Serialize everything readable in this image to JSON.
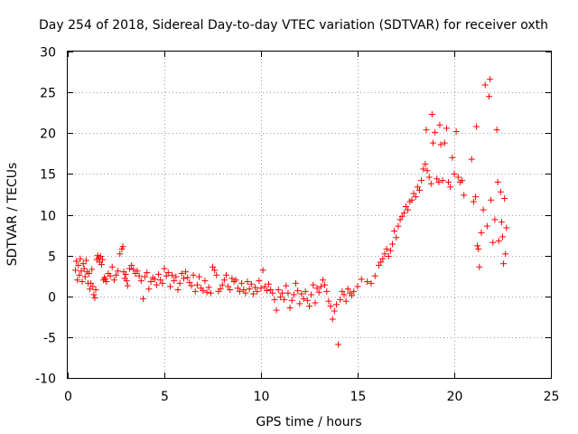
{
  "chart_data": {
    "type": "scatter",
    "title": "Day 254 of 2018, Sidereal Day-to-day VTEC variation (SDTVAR) for receiver oxth",
    "xlabel": "GPS time / hours",
    "ylabel": "SDTVAR / TECUs",
    "xlim": [
      0,
      25
    ],
    "ylim": [
      -10,
      30
    ],
    "xticks": [
      0,
      5,
      10,
      15,
      20,
      25
    ],
    "yticks": [
      -10,
      -5,
      0,
      5,
      10,
      15,
      20,
      25,
      30
    ],
    "xtick_labels": [
      "0",
      "5",
      "10",
      "15",
      "20",
      "25"
    ],
    "ytick_labels": [
      "-10",
      "-5",
      "0",
      "5",
      "10",
      "15",
      "20",
      "25",
      "30"
    ],
    "grid": true,
    "marker": "plus",
    "color": "#ff0000",
    "series": [
      {
        "name": "SDTVAR",
        "points": [
          [
            0.4,
            3.2
          ],
          [
            0.45,
            4.3
          ],
          [
            0.5,
            2.0
          ],
          [
            0.55,
            3.8
          ],
          [
            0.6,
            2.6
          ],
          [
            0.65,
            4.6
          ],
          [
            0.7,
            3.1
          ],
          [
            0.75,
            1.8
          ],
          [
            0.8,
            4.0
          ],
          [
            0.85,
            3.4
          ],
          [
            0.9,
            2.4
          ],
          [
            0.95,
            4.4
          ],
          [
            1.0,
            3.0
          ],
          [
            1.05,
            1.6
          ],
          [
            1.1,
            2.8
          ],
          [
            1.15,
            0.9
          ],
          [
            1.2,
            1.6
          ],
          [
            1.25,
            3.3
          ],
          [
            1.3,
            1.2
          ],
          [
            1.35,
            0.2
          ],
          [
            1.4,
            -0.2
          ],
          [
            1.45,
            0.8
          ],
          [
            1.5,
            4.5
          ],
          [
            1.55,
            5.0
          ],
          [
            1.6,
            4.7
          ],
          [
            1.65,
            4.2
          ],
          [
            1.7,
            4.9
          ],
          [
            1.75,
            3.9
          ],
          [
            1.8,
            4.5
          ],
          [
            1.85,
            2.0
          ],
          [
            1.9,
            2.3
          ],
          [
            1.95,
            2.1
          ],
          [
            2.0,
            1.8
          ],
          [
            2.1,
            2.8
          ],
          [
            2.2,
            2.5
          ],
          [
            2.3,
            3.6
          ],
          [
            2.4,
            2.0
          ],
          [
            2.5,
            2.6
          ],
          [
            2.6,
            3.1
          ],
          [
            2.7,
            5.2
          ],
          [
            2.8,
            5.8
          ],
          [
            2.85,
            6.1
          ],
          [
            2.9,
            3.0
          ],
          [
            2.95,
            2.2
          ],
          [
            3.0,
            2.7
          ],
          [
            3.05,
            1.9
          ],
          [
            3.1,
            1.3
          ],
          [
            3.2,
            3.4
          ],
          [
            3.3,
            3.8
          ],
          [
            3.4,
            3.3
          ],
          [
            3.5,
            2.8
          ],
          [
            3.6,
            3.1
          ],
          [
            3.7,
            2.5
          ],
          [
            3.8,
            1.9
          ],
          [
            3.9,
            -0.3
          ],
          [
            4.0,
            2.4
          ],
          [
            4.1,
            2.9
          ],
          [
            4.2,
            0.9
          ],
          [
            4.3,
            1.8
          ],
          [
            4.4,
            2.3
          ],
          [
            4.5,
            2.1
          ],
          [
            4.6,
            1.4
          ],
          [
            4.7,
            2.7
          ],
          [
            4.8,
            2.0
          ],
          [
            4.9,
            1.6
          ],
          [
            5.0,
            3.4
          ],
          [
            5.1,
            2.5
          ],
          [
            5.2,
            2.9
          ],
          [
            5.3,
            1.2
          ],
          [
            5.4,
            2.6
          ],
          [
            5.5,
            1.9
          ],
          [
            5.6,
            2.4
          ],
          [
            5.7,
            0.8
          ],
          [
            5.8,
            1.6
          ],
          [
            5.9,
            2.8
          ],
          [
            6.0,
            2.2
          ],
          [
            6.1,
            3.0
          ],
          [
            6.2,
            2.3
          ],
          [
            6.3,
            1.7
          ],
          [
            6.4,
            1.3
          ],
          [
            6.5,
            2.6
          ],
          [
            6.6,
            0.6
          ],
          [
            6.7,
            1.4
          ],
          [
            6.8,
            2.4
          ],
          [
            6.9,
            1.0
          ],
          [
            7.0,
            0.7
          ],
          [
            7.1,
            1.9
          ],
          [
            7.2,
            0.5
          ],
          [
            7.3,
            1.1
          ],
          [
            7.4,
            0.4
          ],
          [
            7.5,
            3.6
          ],
          [
            7.6,
            3.2
          ],
          [
            7.7,
            2.6
          ],
          [
            7.8,
            0.6
          ],
          [
            7.9,
            0.9
          ],
          [
            8.0,
            1.4
          ],
          [
            8.1,
            2.0
          ],
          [
            8.2,
            2.6
          ],
          [
            8.3,
            1.2
          ],
          [
            8.4,
            0.8
          ],
          [
            8.5,
            2.2
          ],
          [
            8.6,
            1.8
          ],
          [
            8.7,
            2.0
          ],
          [
            8.8,
            1.0
          ],
          [
            8.9,
            0.6
          ],
          [
            9.0,
            1.6
          ],
          [
            9.1,
            0.8
          ],
          [
            9.2,
            0.4
          ],
          [
            9.3,
            1.8
          ],
          [
            9.4,
            0.9
          ],
          [
            9.5,
            1.5
          ],
          [
            9.6,
            0.3
          ],
          [
            9.7,
            1.1
          ],
          [
            9.8,
            0.6
          ],
          [
            9.9,
            1.9
          ],
          [
            10.0,
            1.0
          ],
          [
            10.1,
            3.2
          ],
          [
            10.2,
            1.2
          ],
          [
            10.3,
            0.7
          ],
          [
            10.4,
            1.5
          ],
          [
            10.5,
            0.8
          ],
          [
            10.6,
            0.4
          ],
          [
            10.7,
            -0.4
          ],
          [
            10.8,
            -1.7
          ],
          [
            10.9,
            0.8
          ],
          [
            11.0,
            -0.1
          ],
          [
            11.1,
            0.4
          ],
          [
            11.2,
            -0.4
          ],
          [
            11.3,
            1.3
          ],
          [
            11.4,
            0.4
          ],
          [
            11.5,
            -1.4
          ],
          [
            11.6,
            -0.5
          ],
          [
            11.7,
            0.2
          ],
          [
            11.8,
            1.6
          ],
          [
            11.9,
            0.7
          ],
          [
            12.0,
            -0.9
          ],
          [
            12.1,
            0.3
          ],
          [
            12.2,
            -0.3
          ],
          [
            12.3,
            0.6
          ],
          [
            12.4,
            -0.5
          ],
          [
            12.5,
            -1.2
          ],
          [
            12.6,
            0.2
          ],
          [
            12.7,
            1.4
          ],
          [
            12.8,
            -0.8
          ],
          [
            12.9,
            1.0
          ],
          [
            13.0,
            0.5
          ],
          [
            13.1,
            1.2
          ],
          [
            13.2,
            2.0
          ],
          [
            13.3,
            1.4
          ],
          [
            13.4,
            0.6
          ],
          [
            13.5,
            -0.6
          ],
          [
            13.6,
            -1.2
          ],
          [
            13.7,
            -2.8
          ],
          [
            13.8,
            -1.8
          ],
          [
            13.9,
            -1.0
          ],
          [
            14.0,
            -5.9
          ],
          [
            14.1,
            -0.4
          ],
          [
            14.2,
            0.6
          ],
          [
            14.3,
            0.2
          ],
          [
            14.4,
            -0.6
          ],
          [
            14.5,
            0.9
          ],
          [
            14.6,
            0.4
          ],
          [
            14.7,
            0.1
          ],
          [
            14.8,
            0.6
          ],
          [
            15.0,
            1.2
          ],
          [
            15.2,
            2.1
          ],
          [
            15.5,
            1.8
          ],
          [
            15.7,
            1.6
          ],
          [
            15.9,
            2.5
          ],
          [
            16.1,
            3.8
          ],
          [
            16.2,
            4.2
          ],
          [
            16.3,
            4.6
          ],
          [
            16.4,
            5.2
          ],
          [
            16.5,
            5.8
          ],
          [
            16.6,
            4.9
          ],
          [
            16.7,
            5.6
          ],
          [
            16.8,
            6.4
          ],
          [
            16.9,
            8.0
          ],
          [
            17.0,
            7.2
          ],
          [
            17.1,
            8.6
          ],
          [
            17.2,
            9.4
          ],
          [
            17.3,
            9.8
          ],
          [
            17.4,
            10.2
          ],
          [
            17.5,
            11.0
          ],
          [
            17.6,
            10.6
          ],
          [
            17.7,
            11.6
          ],
          [
            17.8,
            11.8
          ],
          [
            17.9,
            12.6
          ],
          [
            18.0,
            12.2
          ],
          [
            18.1,
            13.4
          ],
          [
            18.2,
            13.0
          ],
          [
            18.3,
            14.2
          ],
          [
            18.4,
            15.6
          ],
          [
            18.5,
            16.2
          ],
          [
            18.55,
            20.4
          ],
          [
            18.6,
            15.4
          ],
          [
            18.7,
            14.6
          ],
          [
            18.8,
            13.8
          ],
          [
            18.85,
            22.3
          ],
          [
            18.9,
            18.8
          ],
          [
            19.0,
            20.1
          ],
          [
            19.1,
            14.4
          ],
          [
            19.2,
            14.0
          ],
          [
            19.25,
            21.0
          ],
          [
            19.3,
            18.6
          ],
          [
            19.4,
            14.2
          ],
          [
            19.5,
            18.8
          ],
          [
            19.6,
            20.6
          ],
          [
            19.7,
            14.0
          ],
          [
            19.8,
            13.4
          ],
          [
            19.9,
            17.0
          ],
          [
            20.0,
            15.0
          ],
          [
            20.1,
            20.2
          ],
          [
            20.2,
            14.6
          ],
          [
            20.3,
            14.0
          ],
          [
            20.4,
            14.2
          ],
          [
            20.5,
            12.4
          ],
          [
            20.9,
            16.8
          ],
          [
            21.0,
            11.6
          ],
          [
            21.1,
            12.2
          ],
          [
            21.15,
            20.8
          ],
          [
            21.2,
            6.2
          ],
          [
            21.25,
            5.8
          ],
          [
            21.3,
            3.6
          ],
          [
            21.4,
            7.8
          ],
          [
            21.5,
            10.6
          ],
          [
            21.6,
            25.9
          ],
          [
            21.7,
            8.6
          ],
          [
            21.8,
            24.5
          ],
          [
            21.85,
            26.6
          ],
          [
            21.9,
            11.8
          ],
          [
            22.0,
            6.6
          ],
          [
            22.1,
            9.4
          ],
          [
            22.2,
            20.4
          ],
          [
            22.25,
            14.0
          ],
          [
            22.3,
            6.8
          ],
          [
            22.4,
            12.8
          ],
          [
            22.45,
            9.1
          ],
          [
            22.5,
            7.3
          ],
          [
            22.55,
            4.0
          ],
          [
            22.6,
            12.0
          ],
          [
            22.65,
            5.2
          ],
          [
            22.7,
            8.4
          ]
        ]
      }
    ]
  }
}
